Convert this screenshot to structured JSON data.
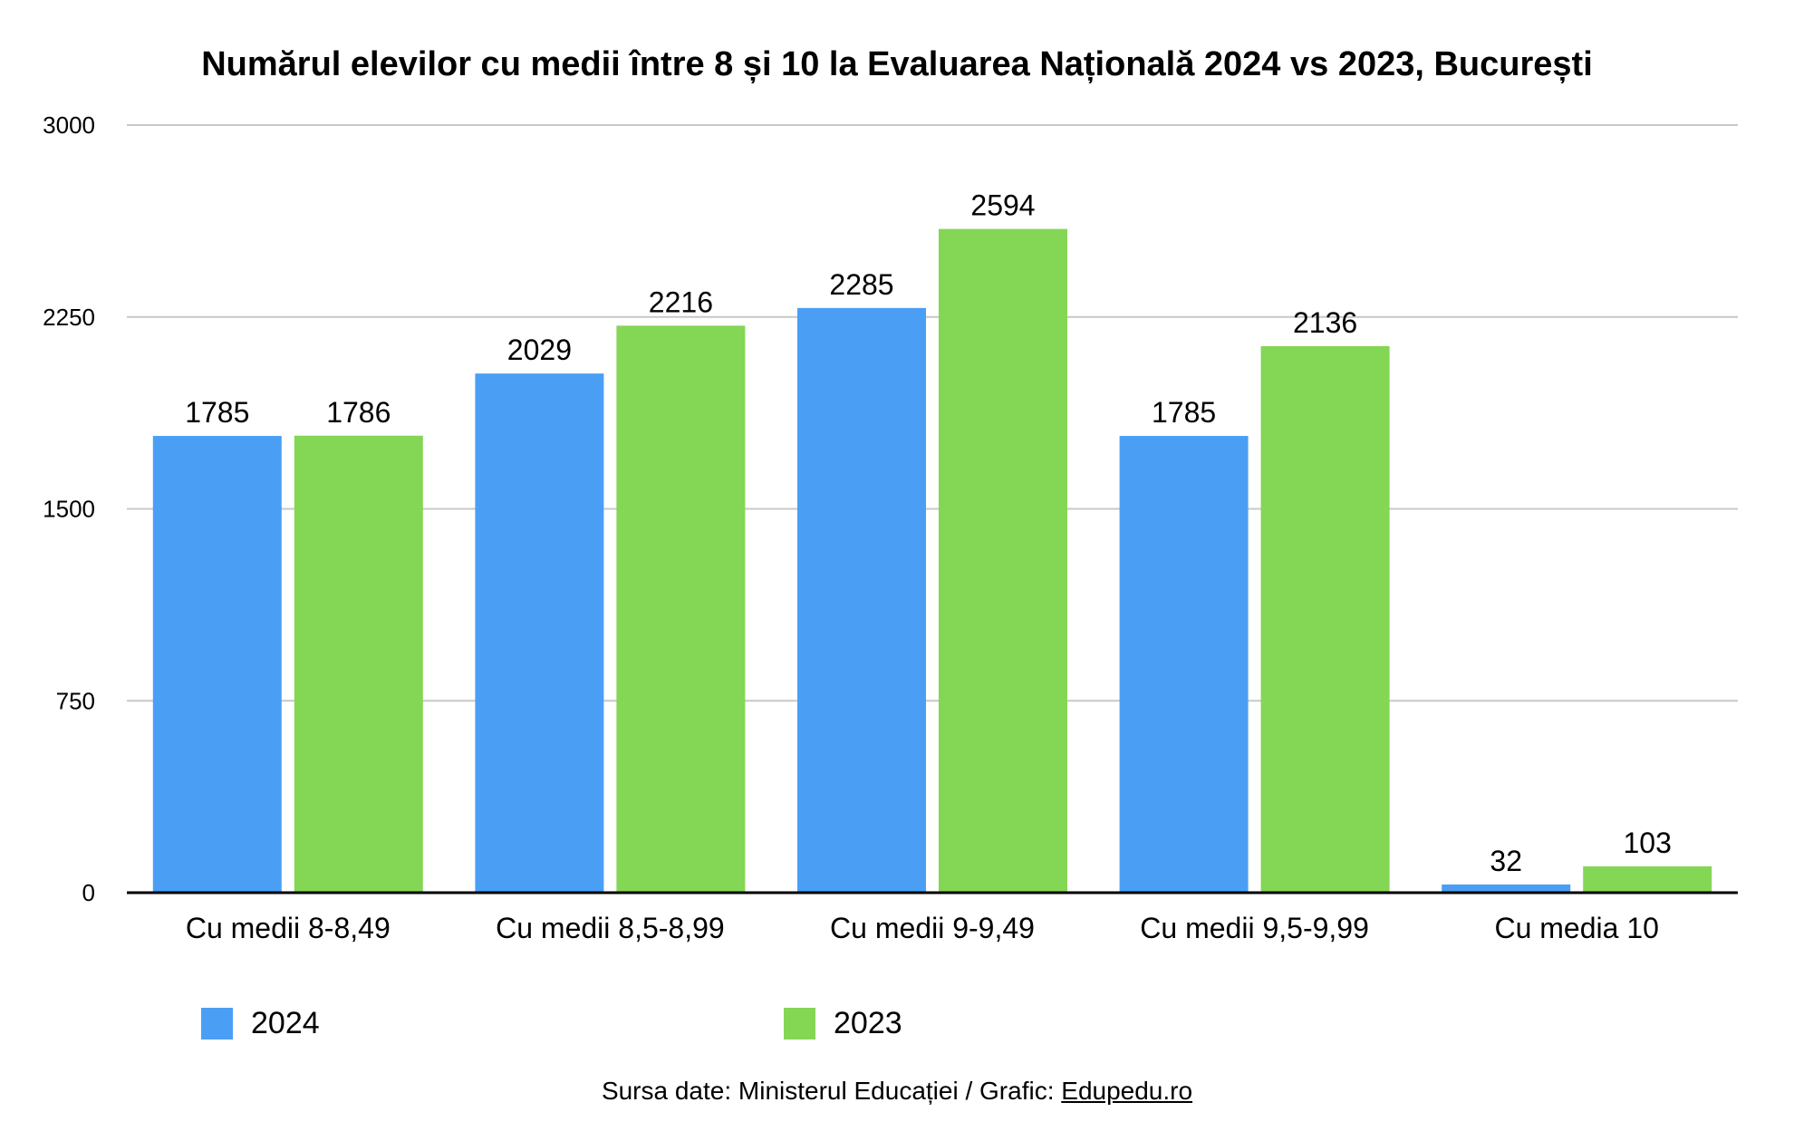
{
  "chart_data": {
    "type": "bar",
    "title": "Numărul elevilor cu medii între 8 și 10 la Evaluarea Națională 2024 vs 2023, București",
    "categories": [
      "Cu medii 8-8,49",
      "Cu medii 8,5-8,99",
      "Cu medii 9-9,49",
      "Cu medii 9,5-9,99",
      "Cu media 10"
    ],
    "series": [
      {
        "name": "2024",
        "color": "#4A9FF5",
        "values": [
          1785,
          2029,
          2285,
          1785,
          32
        ]
      },
      {
        "name": "2023",
        "color": "#84D655",
        "values": [
          1786,
          2216,
          2594,
          2136,
          103
        ]
      }
    ],
    "xlabel": "",
    "ylabel": "",
    "ylim": [
      0,
      3000
    ],
    "yticks": [
      0,
      750,
      1500,
      2250,
      3000
    ],
    "grid": true,
    "legend_position": "bottom",
    "data_labels": true
  },
  "footer": {
    "source_prefix": "Sursa date: Ministerul Educației / Grafic: ",
    "source_link": "Edupedu.ro"
  }
}
